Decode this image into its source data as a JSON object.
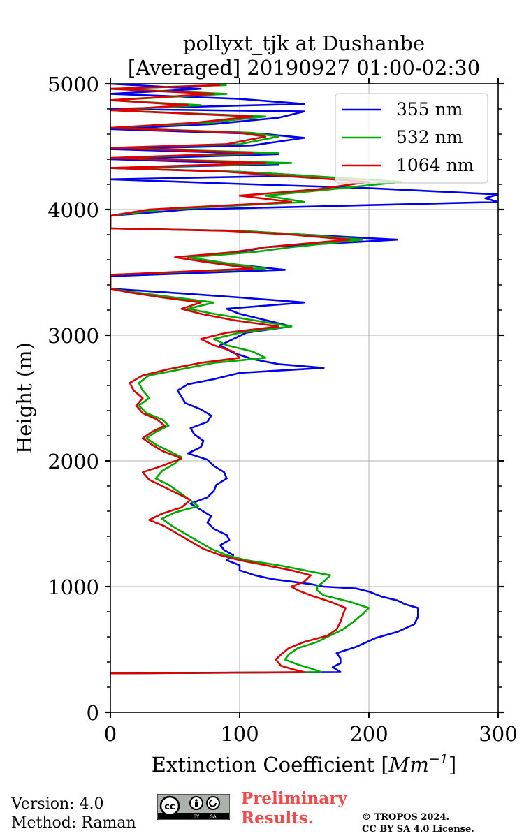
{
  "chart_data": {
    "type": "line",
    "title_line1": "pollyxt_tjk at Dushanbe",
    "title_line2": "[Averaged] 20190927 01:00-02:30",
    "xlabel_text": "Extinction Coefficient [",
    "xlabel_unit": "Mm",
    "xlabel_exp": "−1",
    "xlabel_close": "]",
    "ylabel": "Height (m)",
    "xlim": [
      0,
      300
    ],
    "ylim": [
      0,
      5000
    ],
    "xticks": [
      0,
      100,
      200,
      300
    ],
    "yticks": [
      0,
      1000,
      2000,
      3000,
      4000,
      5000
    ],
    "ymajor_grid": [
      1000,
      2000,
      3000,
      4000
    ],
    "xmajor_grid": [
      100,
      200
    ],
    "yminor_step": 200,
    "legend_position": "top-right",
    "series": [
      {
        "name": "355 nm",
        "color": "#0000ee",
        "points": [
          [
            0,
            310
          ],
          [
            178,
            320
          ],
          [
            172,
            360
          ],
          [
            178,
            390
          ],
          [
            178,
            430
          ],
          [
            175,
            470
          ],
          [
            190,
            520
          ],
          [
            205,
            590
          ],
          [
            222,
            640
          ],
          [
            235,
            700
          ],
          [
            238,
            760
          ],
          [
            238,
            830
          ],
          [
            228,
            860
          ],
          [
            222,
            890
          ],
          [
            210,
            920
          ],
          [
            200,
            960
          ],
          [
            190,
            985
          ],
          [
            165,
            1000
          ],
          [
            155,
            1020
          ],
          [
            125,
            1060
          ],
          [
            112,
            1090
          ],
          [
            100,
            1130
          ],
          [
            100,
            1170
          ],
          [
            90,
            1210
          ],
          [
            95,
            1250
          ],
          [
            88,
            1290
          ],
          [
            85,
            1330
          ],
          [
            92,
            1370
          ],
          [
            90,
            1410
          ],
          [
            80,
            1460
          ],
          [
            75,
            1510
          ],
          [
            78,
            1560
          ],
          [
            70,
            1610
          ],
          [
            62,
            1660
          ],
          [
            75,
            1710
          ],
          [
            80,
            1760
          ],
          [
            82,
            1810
          ],
          [
            90,
            1860
          ],
          [
            88,
            1910
          ],
          [
            80,
            1960
          ],
          [
            75,
            2010
          ],
          [
            60,
            2060
          ],
          [
            70,
            2110
          ],
          [
            72,
            2160
          ],
          [
            65,
            2210
          ],
          [
            62,
            2260
          ],
          [
            75,
            2310
          ],
          [
            78,
            2360
          ],
          [
            70,
            2410
          ],
          [
            58,
            2460
          ],
          [
            55,
            2510
          ],
          [
            52,
            2560
          ],
          [
            60,
            2610
          ],
          [
            80,
            2650
          ],
          [
            100,
            2700
          ],
          [
            165,
            2740
          ],
          [
            130,
            2770
          ],
          [
            110,
            2810
          ],
          [
            95,
            2860
          ],
          [
            85,
            2920
          ],
          [
            95,
            2970
          ],
          [
            105,
            3020
          ],
          [
            140,
            3070
          ],
          [
            120,
            3120
          ],
          [
            100,
            3170
          ],
          [
            90,
            3210
          ],
          [
            150,
            3260
          ],
          [
            100,
            3300
          ],
          [
            45,
            3340
          ],
          [
            0,
            3370
          ],
          [
            0,
            3420
          ],
          [
            0,
            3470
          ],
          [
            135,
            3520
          ],
          [
            90,
            3570
          ],
          [
            60,
            3620
          ],
          [
            100,
            3660
          ],
          [
            120,
            3700
          ],
          [
            222,
            3760
          ],
          [
            150,
            3800
          ],
          [
            100,
            3830
          ],
          [
            0,
            3850
          ],
          [
            0,
            3900
          ],
          [
            0,
            3950
          ],
          [
            60,
            4000
          ],
          [
            300,
            4060
          ],
          [
            290,
            4090
          ],
          [
            300,
            4120
          ],
          [
            200,
            4170
          ],
          [
            110,
            4200
          ],
          [
            0,
            4240
          ],
          [
            150,
            4270
          ],
          [
            100,
            4300
          ],
          [
            0,
            4330
          ],
          [
            130,
            4360
          ],
          [
            0,
            4400
          ],
          [
            130,
            4440
          ],
          [
            0,
            4480
          ],
          [
            110,
            4510
          ],
          [
            150,
            4570
          ],
          [
            120,
            4600
          ],
          [
            0,
            4640
          ],
          [
            80,
            4680
          ],
          [
            130,
            4730
          ],
          [
            150,
            4780
          ],
          [
            0,
            4800
          ],
          [
            150,
            4840
          ],
          [
            100,
            4880
          ],
          [
            0,
            4920
          ],
          [
            70,
            4960
          ],
          [
            0,
            5000
          ]
        ]
      },
      {
        "name": "532 nm",
        "color": "#00aa00",
        "points": [
          [
            0,
            310
          ],
          [
            163,
            320
          ],
          [
            155,
            350
          ],
          [
            145,
            380
          ],
          [
            135,
            420
          ],
          [
            138,
            460
          ],
          [
            145,
            510
          ],
          [
            160,
            560
          ],
          [
            170,
            610
          ],
          [
            180,
            660
          ],
          [
            188,
            720
          ],
          [
            195,
            780
          ],
          [
            200,
            830
          ],
          [
            185,
            880
          ],
          [
            165,
            930
          ],
          [
            160,
            970
          ],
          [
            160,
            1000
          ],
          [
            165,
            1040
          ],
          [
            170,
            1090
          ],
          [
            150,
            1130
          ],
          [
            130,
            1170
          ],
          [
            105,
            1210
          ],
          [
            90,
            1250
          ],
          [
            78,
            1300
          ],
          [
            68,
            1360
          ],
          [
            58,
            1420
          ],
          [
            48,
            1480
          ],
          [
            40,
            1540
          ],
          [
            50,
            1590
          ],
          [
            68,
            1640
          ],
          [
            60,
            1700
          ],
          [
            52,
            1760
          ],
          [
            45,
            1810
          ],
          [
            35,
            1860
          ],
          [
            40,
            1920
          ],
          [
            50,
            1980
          ],
          [
            55,
            2030
          ],
          [
            45,
            2080
          ],
          [
            35,
            2130
          ],
          [
            28,
            2180
          ],
          [
            35,
            2230
          ],
          [
            45,
            2280
          ],
          [
            40,
            2330
          ],
          [
            28,
            2380
          ],
          [
            22,
            2440
          ],
          [
            30,
            2500
          ],
          [
            25,
            2560
          ],
          [
            22,
            2620
          ],
          [
            30,
            2680
          ],
          [
            55,
            2730
          ],
          [
            80,
            2780
          ],
          [
            120,
            2820
          ],
          [
            110,
            2870
          ],
          [
            90,
            2920
          ],
          [
            80,
            2970
          ],
          [
            100,
            3020
          ],
          [
            140,
            3070
          ],
          [
            110,
            3120
          ],
          [
            80,
            3170
          ],
          [
            60,
            3210
          ],
          [
            80,
            3260
          ],
          [
            50,
            3300
          ],
          [
            20,
            3340
          ],
          [
            0,
            3370
          ],
          [
            0,
            3430
          ],
          [
            0,
            3480
          ],
          [
            120,
            3530
          ],
          [
            85,
            3580
          ],
          [
            60,
            3620
          ],
          [
            110,
            3660
          ],
          [
            140,
            3700
          ],
          [
            195,
            3760
          ],
          [
            150,
            3800
          ],
          [
            100,
            3830
          ],
          [
            0,
            3850
          ],
          [
            0,
            3900
          ],
          [
            0,
            3950
          ],
          [
            40,
            4000
          ],
          [
            150,
            4060
          ],
          [
            120,
            4110
          ],
          [
            170,
            4160
          ],
          [
            225,
            4220
          ],
          [
            150,
            4270
          ],
          [
            100,
            4300
          ],
          [
            0,
            4330
          ],
          [
            140,
            4370
          ],
          [
            0,
            4410
          ],
          [
            130,
            4450
          ],
          [
            0,
            4490
          ],
          [
            100,
            4520
          ],
          [
            130,
            4580
          ],
          [
            110,
            4610
          ],
          [
            0,
            4650
          ],
          [
            75,
            4690
          ],
          [
            120,
            4740
          ],
          [
            0,
            4790
          ],
          [
            70,
            4830
          ],
          [
            0,
            4870
          ],
          [
            90,
            4920
          ],
          [
            0,
            4960
          ],
          [
            90,
            4990
          ]
        ]
      },
      {
        "name": "1064 nm",
        "color": "#dd0000",
        "points": [
          [
            0,
            310
          ],
          [
            150,
            320
          ],
          [
            142,
            340
          ],
          [
            132,
            370
          ],
          [
            128,
            420
          ],
          [
            132,
            460
          ],
          [
            138,
            510
          ],
          [
            150,
            560
          ],
          [
            168,
            610
          ],
          [
            175,
            660
          ],
          [
            178,
            720
          ],
          [
            180,
            780
          ],
          [
            182,
            830
          ],
          [
            170,
            880
          ],
          [
            155,
            930
          ],
          [
            145,
            970
          ],
          [
            140,
            1000
          ],
          [
            150,
            1040
          ],
          [
            155,
            1090
          ],
          [
            140,
            1130
          ],
          [
            120,
            1170
          ],
          [
            100,
            1210
          ],
          [
            85,
            1250
          ],
          [
            72,
            1300
          ],
          [
            62,
            1360
          ],
          [
            52,
            1420
          ],
          [
            42,
            1480
          ],
          [
            30,
            1530
          ],
          [
            40,
            1580
          ],
          [
            55,
            1630
          ],
          [
            62,
            1690
          ],
          [
            50,
            1750
          ],
          [
            40,
            1800
          ],
          [
            30,
            1850
          ],
          [
            25,
            1910
          ],
          [
            40,
            1960
          ],
          [
            55,
            2020
          ],
          [
            40,
            2080
          ],
          [
            32,
            2130
          ],
          [
            25,
            2180
          ],
          [
            32,
            2230
          ],
          [
            42,
            2280
          ],
          [
            36,
            2330
          ],
          [
            25,
            2380
          ],
          [
            20,
            2440
          ],
          [
            25,
            2500
          ],
          [
            18,
            2560
          ],
          [
            15,
            2620
          ],
          [
            25,
            2680
          ],
          [
            45,
            2730
          ],
          [
            70,
            2780
          ],
          [
            100,
            2820
          ],
          [
            95,
            2870
          ],
          [
            80,
            2920
          ],
          [
            70,
            2970
          ],
          [
            90,
            3020
          ],
          [
            130,
            3070
          ],
          [
            95,
            3120
          ],
          [
            70,
            3170
          ],
          [
            55,
            3210
          ],
          [
            70,
            3260
          ],
          [
            40,
            3300
          ],
          [
            15,
            3340
          ],
          [
            0,
            3370
          ],
          [
            0,
            3430
          ],
          [
            0,
            3480
          ],
          [
            110,
            3530
          ],
          [
            75,
            3580
          ],
          [
            50,
            3620
          ],
          [
            95,
            3660
          ],
          [
            120,
            3700
          ],
          [
            185,
            3760
          ],
          [
            140,
            3800
          ],
          [
            90,
            3830
          ],
          [
            0,
            3850
          ],
          [
            0,
            3900
          ],
          [
            0,
            3950
          ],
          [
            30,
            4000
          ],
          [
            140,
            4060
          ],
          [
            100,
            4110
          ],
          [
            160,
            4160
          ],
          [
            200,
            4220
          ],
          [
            130,
            4270
          ],
          [
            90,
            4300
          ],
          [
            0,
            4330
          ],
          [
            120,
            4370
          ],
          [
            0,
            4410
          ],
          [
            110,
            4450
          ],
          [
            0,
            4490
          ],
          [
            90,
            4520
          ],
          [
            120,
            4580
          ],
          [
            100,
            4610
          ],
          [
            0,
            4650
          ],
          [
            65,
            4690
          ],
          [
            110,
            4740
          ],
          [
            0,
            4790
          ],
          [
            60,
            4830
          ],
          [
            0,
            4870
          ],
          [
            80,
            4920
          ],
          [
            0,
            4960
          ],
          [
            85,
            4990
          ]
        ]
      }
    ]
  },
  "footer": {
    "version": "Version: 4.0",
    "method": "Method: Raman",
    "preliminary_line1": "Preliminary",
    "preliminary_line2": "Results.",
    "copyright_line1": "© TROPOS 2024.",
    "copyright_line2": "CC BY SA 4.0 License.",
    "badge_text_by": "BY",
    "badge_text_sa": "SA",
    "badge_text_cc": "cc"
  }
}
